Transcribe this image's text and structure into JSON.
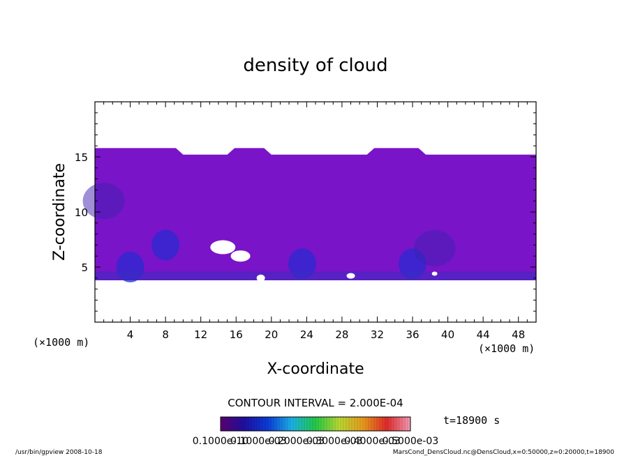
{
  "chart_data": {
    "type": "heatmap",
    "title": "density of cloud",
    "xlabel": "X-coordinate",
    "ylabel": "Z-coordinate",
    "x_unit": "(×1000 m)",
    "y_unit": "(×1000 m)",
    "xlim": [
      0,
      50
    ],
    "ylim": [
      0,
      20
    ],
    "x_ticks": [
      4,
      8,
      12,
      16,
      20,
      24,
      28,
      32,
      36,
      40,
      44,
      48
    ],
    "y_ticks": [
      5,
      10,
      15
    ],
    "cloud_layer": {
      "z_bottom": 3.8,
      "z_top_min": 15.1,
      "z_top_max": 15.8
    },
    "dense_regions": [
      {
        "x": 8,
        "z": 7,
        "level": "high"
      },
      {
        "x": 4,
        "z": 5,
        "level": "high"
      },
      {
        "x": 1,
        "z": 11,
        "level": "medium"
      },
      {
        "x": 23.5,
        "z": 5.3,
        "level": "high"
      },
      {
        "x": 36,
        "z": 5.3,
        "level": "high"
      },
      {
        "x": 38.5,
        "z": 6.7,
        "level": "medium"
      }
    ],
    "contour_interval": "CONTOUR INTERVAL = 2.000E-04",
    "colorbar": {
      "labels": [
        "0.1000e-10",
        "0.1000e-03",
        "0.2000e-03",
        "0.3000e-03",
        "0.4000e-03",
        "0.5000e-03"
      ],
      "colors": [
        "#5c0070",
        "#1f0fa0",
        "#0b3cd8",
        "#1ab2e6",
        "#23c847",
        "#b7d832",
        "#e89a1c",
        "#e02a2a",
        "#f29bb5"
      ]
    },
    "time_label": "t=18900 s"
  },
  "footer": {
    "left": "/usr/bin/gpview   2008-10-18",
    "right": "MarsCond_DensCloud.nc@DensCloud,x=0:50000,z=0:20000,t=18900"
  },
  "colors": {
    "cloud_base": "#7a14c8",
    "cloud_dark": "#3e1fb0",
    "frame": "#000000"
  }
}
